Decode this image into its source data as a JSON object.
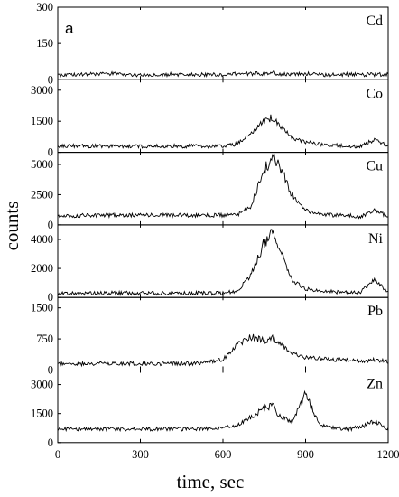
{
  "figure": {
    "panel_letter": "a",
    "xlabel": "time, sec",
    "ylabel": "counts",
    "x_ticks": [
      "0",
      "300",
      "600",
      "900",
      "1200"
    ]
  },
  "chart_data": {
    "type": "line",
    "xlabel": "time, sec",
    "ylabel": "counts",
    "xlim": [
      0,
      1200
    ],
    "x": [
      0,
      100,
      200,
      300,
      400,
      500,
      600,
      650,
      700,
      750,
      780,
      800,
      850,
      900,
      950,
      1000,
      1050,
      1100,
      1150,
      1200
    ],
    "series": [
      {
        "name": "Cd",
        "ylim": [
          0,
          300
        ],
        "yticks": [
          "0",
          "150",
          "300"
        ],
        "values": [
          20,
          22,
          25,
          20,
          22,
          20,
          22,
          24,
          25,
          25,
          30,
          24,
          22,
          25,
          22,
          20,
          22,
          20,
          22,
          22
        ]
      },
      {
        "name": "Co",
        "ylim": [
          0,
          3500
        ],
        "yticks": [
          "0",
          "1500",
          "3000"
        ],
        "values": [
          300,
          300,
          300,
          300,
          300,
          300,
          300,
          400,
          900,
          1500,
          1700,
          1400,
          700,
          500,
          400,
          350,
          300,
          300,
          600,
          300
        ]
      },
      {
        "name": "Cu",
        "ylim": [
          0,
          6000
        ],
        "yticks": [
          "0",
          "2500",
          "5000"
        ],
        "values": [
          700,
          800,
          800,
          800,
          800,
          800,
          800,
          800,
          1500,
          4500,
          5700,
          5200,
          2500,
          1200,
          900,
          800,
          800,
          700,
          1200,
          700
        ]
      },
      {
        "name": "Ni",
        "ylim": [
          0,
          5000
        ],
        "yticks": [
          "0",
          "2000",
          "4000"
        ],
        "values": [
          300,
          300,
          300,
          300,
          300,
          300,
          300,
          400,
          1500,
          3800,
          4400,
          3700,
          1200,
          600,
          500,
          400,
          350,
          400,
          1200,
          400
        ]
      },
      {
        "name": "Pb",
        "ylim": [
          0,
          1750
        ],
        "yticks": [
          "0",
          "750",
          "1500"
        ],
        "values": [
          150,
          150,
          150,
          150,
          150,
          160,
          250,
          600,
          800,
          700,
          800,
          650,
          400,
          300,
          280,
          250,
          250,
          220,
          250,
          200
        ]
      },
      {
        "name": "Zn",
        "ylim": [
          0,
          3750
        ],
        "yticks": [
          "0",
          "1500",
          "3000"
        ],
        "values": [
          700,
          700,
          700,
          700,
          700,
          700,
          750,
          900,
          1300,
          1800,
          1900,
          1500,
          1000,
          2500,
          900,
          750,
          700,
          800,
          1100,
          700
        ]
      }
    ]
  }
}
